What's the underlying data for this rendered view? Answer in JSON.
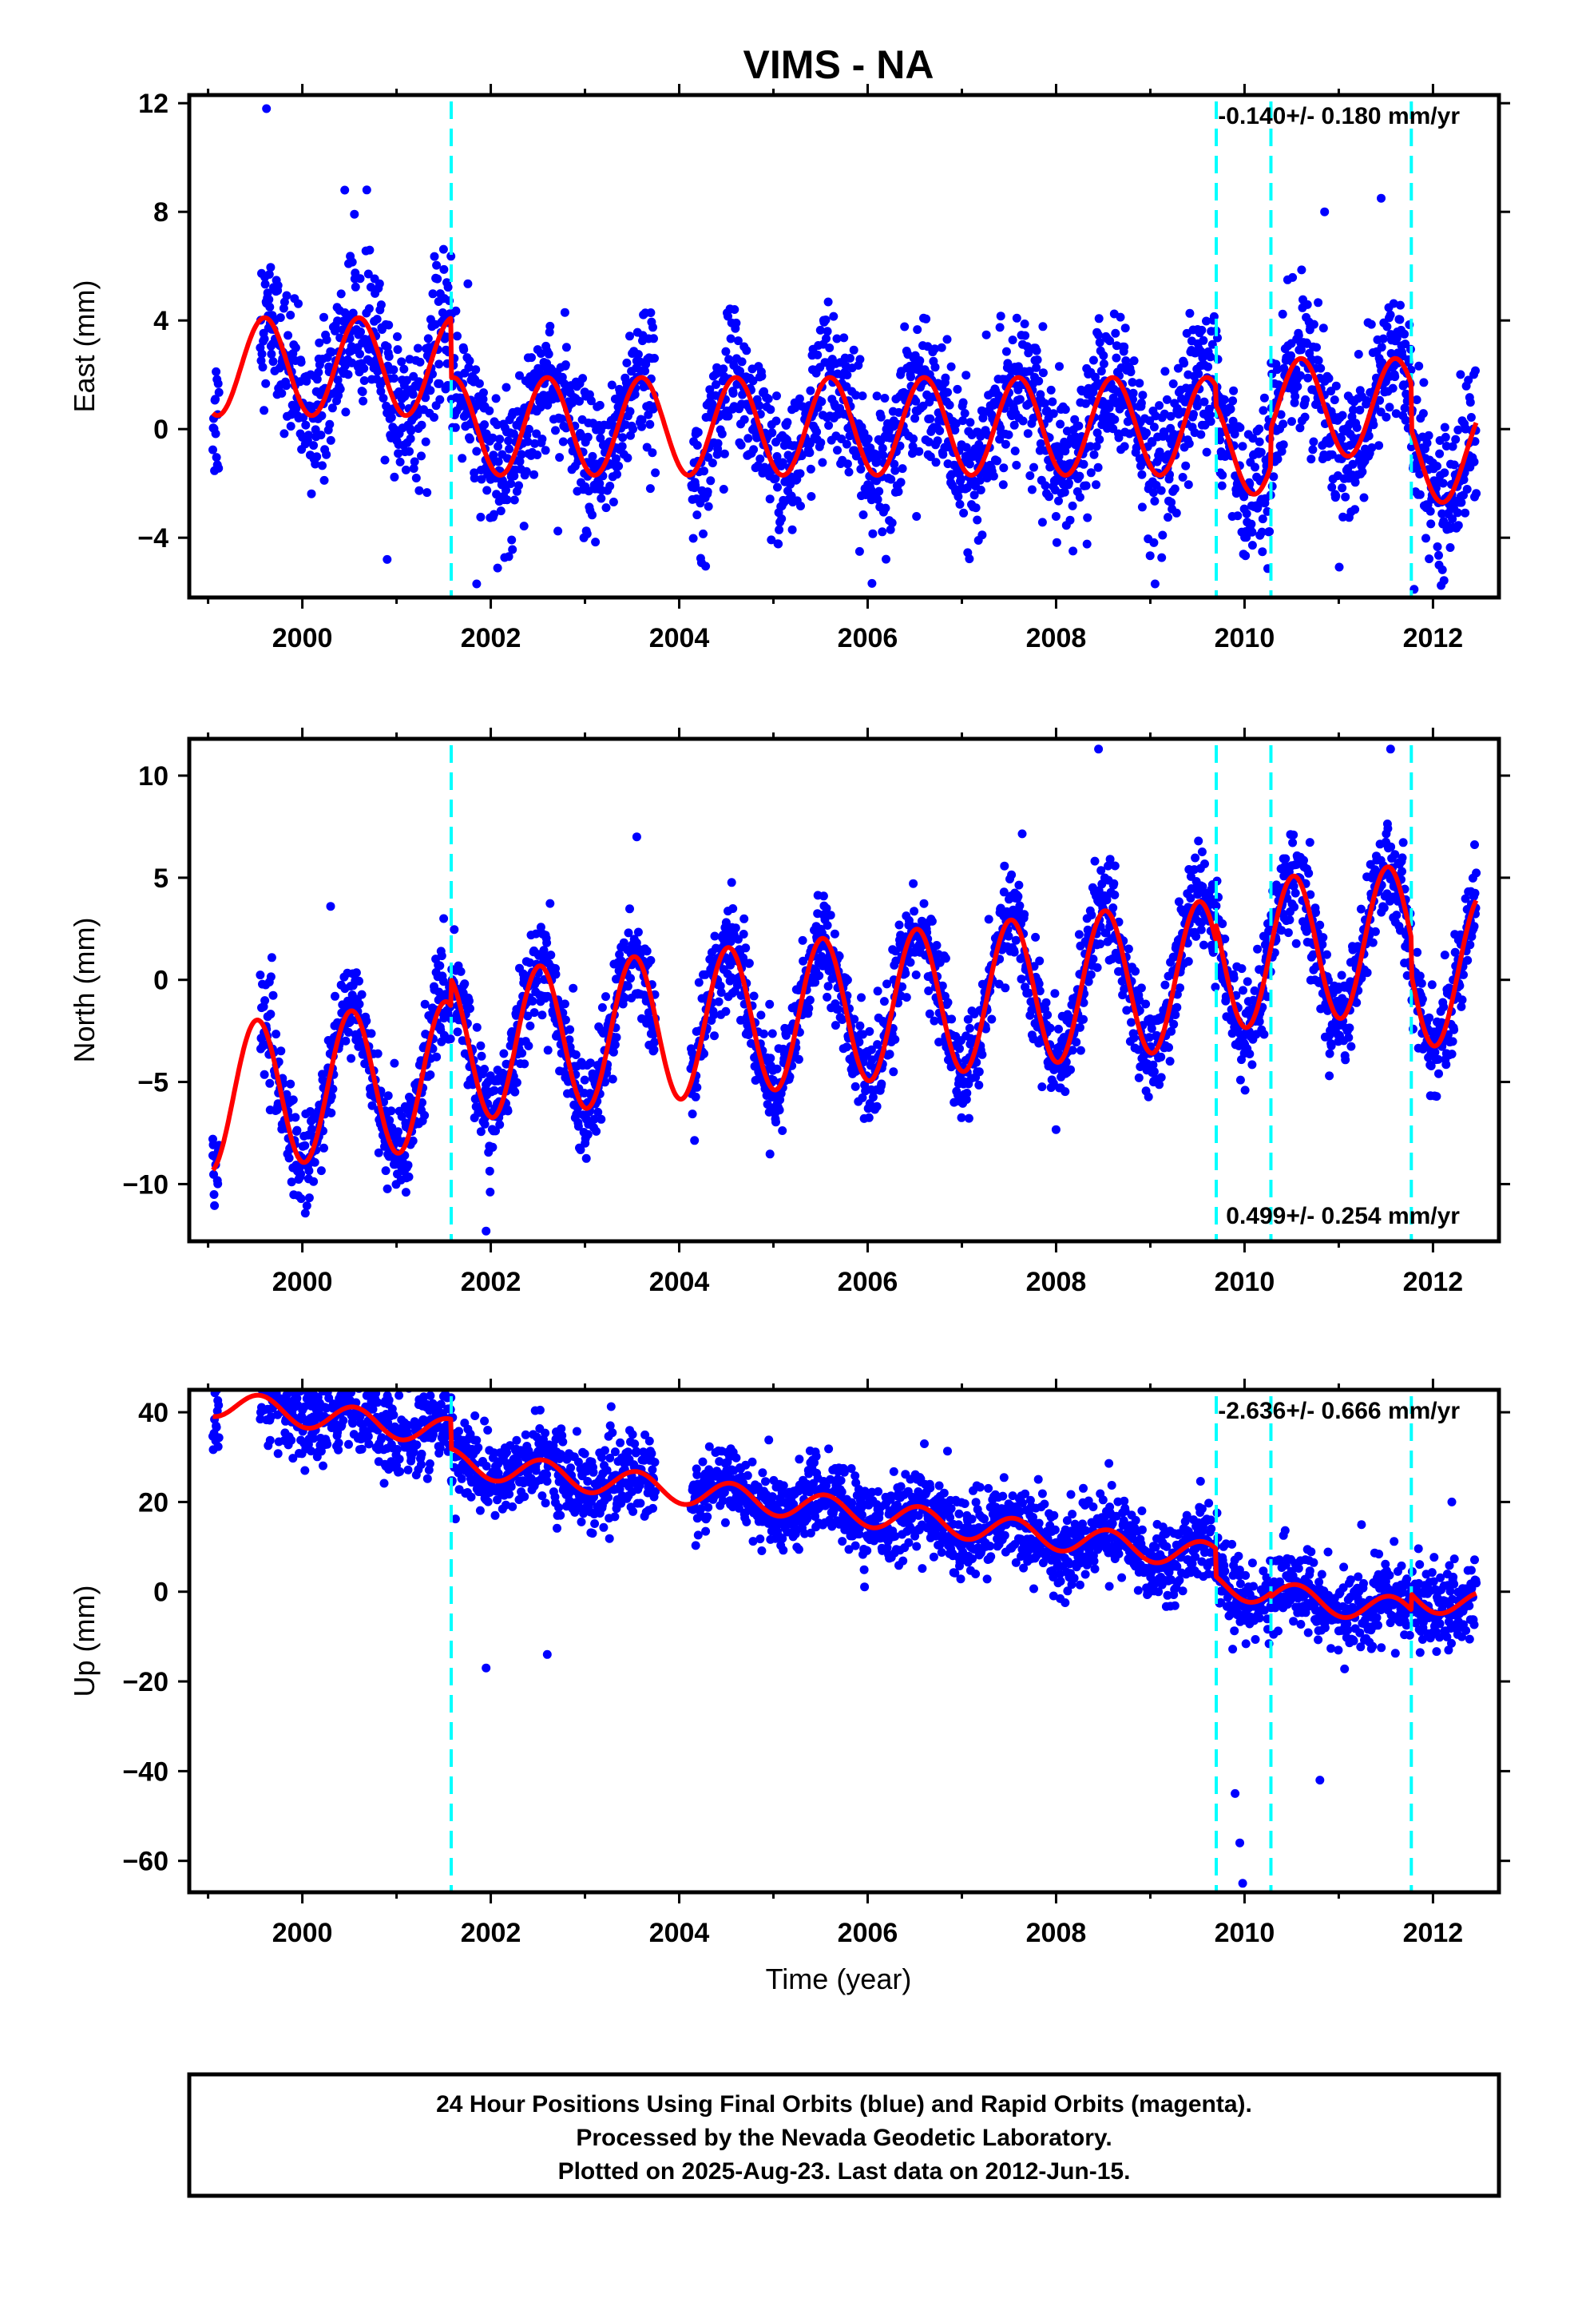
{
  "chart_data": {
    "type": "scatter",
    "title": "VIMS - NA",
    "xlabel": "Time (year)",
    "xlim": [
      1998.8,
      2012.7
    ],
    "x_ticks": [
      2000,
      2002,
      2004,
      2006,
      2008,
      2010,
      2012
    ],
    "x_tick_labels": [
      "2000",
      "2002",
      "2004",
      "2006",
      "2008",
      "2010",
      "2012"
    ],
    "x_minor_ticks": [
      1999,
      2001,
      2003,
      2005,
      2007,
      2009,
      2011
    ],
    "data_range": {
      "start": 1999.05,
      "end": 2012.46
    },
    "gaps": [
      [
        1999.12,
        1999.55
      ],
      [
        2003.75,
        2004.12
      ]
    ],
    "colors": {
      "points": "#0000ff",
      "model": "#ff0000",
      "offsets": "#00ffff",
      "axes": "#000000"
    },
    "offset_lines": [
      2001.58,
      2009.7,
      2010.28,
      2011.77
    ],
    "footer": {
      "lines": [
        "24 Hour Positions Using Final Orbits (blue) and Rapid Orbits (magenta).",
        "Processed by the Nevada Geodetic Laboratory.",
        "Plotted on 2025-Aug-23. Last data on 2012-Jun-15."
      ]
    },
    "panels": [
      {
        "name": "east",
        "ylabel": "East (mm)",
        "ylim": [
          -6.2,
          12.3
        ],
        "y_ticks": [
          -4,
          0,
          4,
          8,
          12
        ],
        "y_tick_labels": [
          "−4",
          "0",
          "4",
          "8",
          "12"
        ],
        "annotation": "-0.140+/- 0.180 mm/yr",
        "annotation_position": "top-right",
        "model": {
          "trend": 0.0,
          "amplitude": 1.8,
          "peak_phase": 0.6,
          "segments": [
            {
              "start": 1999.05,
              "end": 2001.58,
              "offset": 2.3
            },
            {
              "start": 2001.58,
              "end": 2009.7,
              "offset": 0.1
            },
            {
              "start": 2009.7,
              "end": 2010.28,
              "offset": -0.6
            },
            {
              "start": 2010.28,
              "end": 2011.77,
              "offset": 0.8
            },
            {
              "start": 2011.77,
              "end": 2012.46,
              "offset": -0.9
            }
          ]
        },
        "scatter_sd": 1.3,
        "outliers": [
          [
            1999.62,
            11.8
          ],
          [
            2000.45,
            8.8
          ],
          [
            2001.85,
            -5.7
          ],
          [
            2009.05,
            -5.7
          ],
          [
            2010.85,
            8.0
          ],
          [
            2011.45,
            8.5
          ],
          [
            2011.8,
            -5.9
          ],
          [
            2000.9,
            -4.8
          ]
        ]
      },
      {
        "name": "north",
        "ylabel": "North (mm)",
        "ylim": [
          -12.8,
          11.8
        ],
        "y_ticks": [
          -10,
          -5,
          0,
          5,
          10
        ],
        "y_tick_labels": [
          "−10",
          "−5",
          "0",
          "5",
          "10"
        ],
        "annotation": "0.499+/- 0.254 mm/yr",
        "annotation_position": "bottom-right",
        "model": {
          "trend": 0.45,
          "amplitude": 3.6,
          "peak_phase": 0.52,
          "segments": [
            {
              "start": 1999.05,
              "end": 2001.58,
              "offset": -3.1
            },
            {
              "start": 2001.58,
              "end": 2009.7,
              "offset": -1.8
            },
            {
              "start": 2009.7,
              "end": 2010.28,
              "offset": -1.0
            },
            {
              "start": 2010.28,
              "end": 2011.77,
              "offset": -1.0
            },
            {
              "start": 2011.77,
              "end": 2012.46,
              "offset": -2.8
            }
          ]
        },
        "scatter_sd": 1.2,
        "outliers": [
          [
            1999.05,
            -8.6
          ],
          [
            2000.3,
            3.6
          ],
          [
            2001.5,
            3.0
          ],
          [
            2001.95,
            -12.3
          ],
          [
            2003.55,
            7.0
          ],
          [
            2008.45,
            11.3
          ],
          [
            2011.55,
            11.3
          ],
          [
            2010.9,
            -4.7
          ],
          [
            2001.1,
            -10.4
          ]
        ]
      },
      {
        "name": "up",
        "ylabel": "Up (mm)",
        "ylim": [
          -67,
          45
        ],
        "y_ticks": [
          -60,
          -40,
          -20,
          0,
          20,
          40
        ],
        "y_tick_labels": [
          "−60",
          "−40",
          "−20",
          "0",
          "20",
          "40"
        ],
        "annotation": "-2.636+/- 0.666 mm/yr",
        "annotation_position": "top-right",
        "model": {
          "trend": -2.6,
          "amplitude": 3.0,
          "peak_phase": 0.55,
          "segments": [
            {
              "start": 1999.05,
              "end": 2001.58,
              "offset": 26.6
            },
            {
              "start": 2001.58,
              "end": 2009.7,
              "offset": 20.0
            },
            {
              "start": 2009.7,
              "end": 2010.28,
              "offset": 13.8
            },
            {
              "start": 2010.28,
              "end": 2011.77,
              "offset": 13.0
            },
            {
              "start": 2011.77,
              "end": 2012.46,
              "offset": 16.5
            }
          ]
        },
        "scatter_sd": 4.5,
        "outliers": [
          [
            1999.7,
            42.0
          ],
          [
            2000.45,
            42.0
          ],
          [
            2001.95,
            -17.0
          ],
          [
            2002.6,
            -14.0
          ],
          [
            2009.9,
            -45.0
          ],
          [
            2009.95,
            -56.0
          ],
          [
            2009.98,
            -65.0
          ],
          [
            2010.8,
            -42.0
          ],
          [
            2012.2,
            20.0
          ]
        ]
      }
    ]
  }
}
